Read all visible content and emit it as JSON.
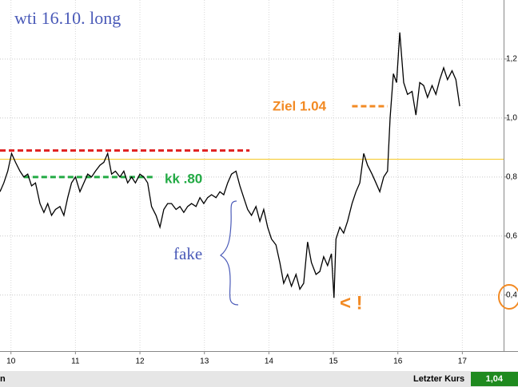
{
  "chart_data": {
    "type": "line",
    "title": "wti 16.10. long",
    "color": "#000000",
    "x": [
      9.83,
      9.89,
      9.95,
      10.01,
      10.07,
      10.14,
      10.2,
      10.26,
      10.32,
      10.38,
      10.45,
      10.51,
      10.57,
      10.63,
      10.69,
      10.76,
      10.82,
      10.88,
      10.94,
      11.0,
      11.07,
      11.13,
      11.19,
      11.25,
      11.31,
      11.38,
      11.44,
      11.5,
      11.56,
      11.62,
      11.69,
      11.75,
      11.81,
      11.87,
      11.93,
      12.0,
      12.06,
      12.12,
      12.18,
      12.25,
      12.31,
      12.37,
      12.43,
      12.49,
      12.56,
      12.62,
      12.68,
      12.74,
      12.8,
      12.87,
      12.93,
      12.99,
      13.05,
      13.11,
      13.18,
      13.24,
      13.3,
      13.36,
      13.42,
      13.49,
      13.55,
      13.61,
      13.67,
      13.73,
      13.8,
      13.86,
      13.92,
      13.98,
      14.04,
      14.11,
      14.17,
      14.23,
      14.29,
      14.35,
      14.42,
      14.48,
      14.54,
      14.6,
      14.66,
      14.73,
      14.79,
      14.85,
      14.91,
      14.97,
      15.01,
      15.04,
      15.1,
      15.16,
      15.22,
      15.29,
      15.35,
      15.41,
      15.47,
      15.53,
      15.6,
      15.66,
      15.72,
      15.78,
      15.84,
      15.88,
      15.93,
      15.98,
      16.03,
      16.09,
      16.15,
      16.22,
      16.28,
      16.34,
      16.4,
      16.46,
      16.53,
      16.59,
      16.65,
      16.71,
      16.77,
      16.84,
      16.9,
      16.96
    ],
    "values": [
      0.75,
      0.78,
      0.82,
      0.88,
      0.85,
      0.82,
      0.8,
      0.81,
      0.77,
      0.78,
      0.71,
      0.68,
      0.71,
      0.67,
      0.69,
      0.7,
      0.67,
      0.73,
      0.78,
      0.8,
      0.75,
      0.78,
      0.81,
      0.8,
      0.82,
      0.84,
      0.85,
      0.88,
      0.81,
      0.82,
      0.8,
      0.82,
      0.78,
      0.8,
      0.78,
      0.81,
      0.8,
      0.78,
      0.7,
      0.67,
      0.63,
      0.69,
      0.71,
      0.71,
      0.69,
      0.7,
      0.68,
      0.7,
      0.71,
      0.7,
      0.73,
      0.71,
      0.73,
      0.74,
      0.73,
      0.75,
      0.74,
      0.78,
      0.81,
      0.82,
      0.77,
      0.73,
      0.69,
      0.67,
      0.7,
      0.65,
      0.69,
      0.63,
      0.59,
      0.57,
      0.51,
      0.44,
      0.47,
      0.43,
      0.47,
      0.42,
      0.44,
      0.58,
      0.51,
      0.47,
      0.48,
      0.53,
      0.5,
      0.54,
      0.39,
      0.59,
      0.63,
      0.61,
      0.65,
      0.71,
      0.75,
      0.78,
      0.88,
      0.84,
      0.81,
      0.78,
      0.75,
      0.8,
      0.82,
      1.0,
      1.15,
      1.12,
      1.29,
      1.12,
      1.08,
      1.09,
      1.01,
      1.12,
      1.11,
      1.07,
      1.11,
      1.08,
      1.13,
      1.17,
      1.13,
      1.16,
      1.13,
      1.04
    ],
    "xlim": [
      9.83,
      17.64
    ],
    "ylim": [
      0.21,
      1.4
    ],
    "xticks": [
      10,
      11,
      12,
      13,
      14,
      15,
      16,
      17
    ],
    "yticks": [
      {
        "value": 0.4,
        "label": "0,4"
      },
      {
        "value": 0.6,
        "label": "0,6"
      },
      {
        "value": 0.8,
        "label": "0,8"
      },
      {
        "value": 1.0,
        "label": "1,0"
      },
      {
        "value": 1.2,
        "label": "1,2"
      }
    ],
    "grid": true,
    "reference_lines": [
      {
        "value": 0.86,
        "color": "#f5c518",
        "dashed": false,
        "x": [
          9.83,
          17.64
        ]
      },
      {
        "value": 0.89,
        "color": "#e02020",
        "dashed": true,
        "x": [
          9.83,
          13.7
        ]
      },
      {
        "value": 0.8,
        "color": "#22aa44",
        "dashed": true,
        "x": [
          10.2,
          12.2
        ]
      },
      {
        "value": 1.04,
        "color": "#f28a24",
        "dashed": true,
        "x": [
          15.29,
          15.84
        ]
      }
    ],
    "annotations": [
      "kk .80",
      "Ziel 1.04",
      "fake",
      "< !"
    ],
    "footer_left": "n",
    "footer_label": "Letzter Kurs",
    "last_price": {
      "value": 1.04,
      "label": "1,04"
    }
  }
}
